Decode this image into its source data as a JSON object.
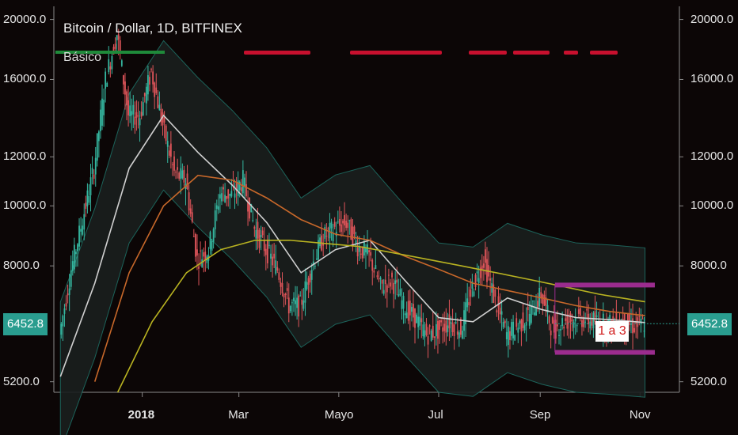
{
  "header": {
    "title": "Bitcoin / Dollar, 1D, BITFINEX",
    "indicator_label": "Básico"
  },
  "price_badge": "6452.8",
  "annotation": "1 a 3",
  "colors": {
    "background": "#0c0606",
    "candle_up": "#35b7a0",
    "candle_down": "#e0555a",
    "badge": "#2a9d8f",
    "ma_fast": "#d0d0d0",
    "ma_mid": "#c8682a",
    "ma_slow": "#b9b321",
    "bollinger": "#1e6e64",
    "box": "#9b2c8e",
    "signal_red": "#c8102e",
    "signal_green": "#1f8a3a"
  },
  "chart_data": {
    "type": "candlestick",
    "title": "Bitcoin / Dollar, 1D, BITFINEX",
    "y_scale": "log",
    "ylim": [
      5000,
      21000
    ],
    "y_ticks": [
      {
        "value": 20000,
        "label": "20000.0"
      },
      {
        "value": 16000,
        "label": "16000.0"
      },
      {
        "value": 12000,
        "label": "12000.0"
      },
      {
        "value": 10000,
        "label": "10000.0"
      },
      {
        "value": 8000,
        "label": "8000.0"
      },
      {
        "value": 5200,
        "label": "5200.0"
      }
    ],
    "x_ticks": [
      {
        "date": "2018-01-01",
        "label": "2018",
        "bold": true
      },
      {
        "date": "2018-03-01",
        "label": "Mar",
        "bold": false
      },
      {
        "date": "2018-05-01",
        "label": "Mayo",
        "bold": false
      },
      {
        "date": "2018-07-01",
        "label": "Jul",
        "bold": false
      },
      {
        "date": "2018-09-01",
        "label": "Sep",
        "bold": false
      },
      {
        "date": "2018-11-01",
        "label": "Nov",
        "bold": false
      }
    ],
    "xlim": [
      "2017-11-08",
      "2018-11-25"
    ],
    "last_price": 6452.8,
    "series": [
      {
        "type": "close",
        "points": [
          [
            "2017-11-12",
            6200
          ],
          [
            "2017-11-19",
            7900
          ],
          [
            "2017-11-26",
            9500
          ],
          [
            "2017-12-03",
            11500
          ],
          [
            "2017-12-10",
            16000
          ],
          [
            "2017-12-17",
            19000
          ],
          [
            "2017-12-24",
            14000
          ],
          [
            "2017-12-31",
            14000
          ],
          [
            "2018-01-07",
            16500
          ],
          [
            "2018-01-14",
            13500
          ],
          [
            "2018-01-21",
            11300
          ],
          [
            "2018-01-28",
            11000
          ],
          [
            "2018-02-04",
            8200
          ],
          [
            "2018-02-11",
            8500
          ],
          [
            "2018-02-18",
            10500
          ],
          [
            "2018-02-25",
            10400
          ],
          [
            "2018-03-04",
            11000
          ],
          [
            "2018-03-11",
            9200
          ],
          [
            "2018-03-18",
            8500
          ],
          [
            "2018-03-25",
            7900
          ],
          [
            "2018-04-01",
            6900
          ],
          [
            "2018-04-08",
            6900
          ],
          [
            "2018-04-15",
            8000
          ],
          [
            "2018-04-22",
            8900
          ],
          [
            "2018-04-29",
            9200
          ],
          [
            "2018-05-06",
            9400
          ],
          [
            "2018-05-13",
            8600
          ],
          [
            "2018-05-20",
            8300
          ],
          [
            "2018-05-27",
            7400
          ],
          [
            "2018-06-03",
            7600
          ],
          [
            "2018-06-10",
            6900
          ],
          [
            "2018-06-17",
            6600
          ],
          [
            "2018-06-24",
            6200
          ],
          [
            "2018-07-01",
            6300
          ],
          [
            "2018-07-08",
            6500
          ],
          [
            "2018-07-15",
            6300
          ],
          [
            "2018-07-22",
            7400
          ],
          [
            "2018-07-29",
            8200
          ],
          [
            "2018-08-05",
            7000
          ],
          [
            "2018-08-12",
            6200
          ],
          [
            "2018-08-19",
            6400
          ],
          [
            "2018-08-26",
            6700
          ],
          [
            "2018-09-02",
            7200
          ],
          [
            "2018-09-09",
            6300
          ],
          [
            "2018-09-16",
            6500
          ],
          [
            "2018-09-23",
            6600
          ],
          [
            "2018-09-30",
            6550
          ],
          [
            "2018-10-07",
            6500
          ],
          [
            "2018-10-14",
            6450
          ],
          [
            "2018-10-21",
            6500
          ],
          [
            "2018-10-28",
            6400
          ],
          [
            "2018-11-04",
            6452.8
          ]
        ]
      },
      {
        "type": "ma_fast",
        "points": [
          [
            "2017-11-12",
            5300
          ],
          [
            "2017-12-03",
            7500
          ],
          [
            "2017-12-24",
            11500
          ],
          [
            "2018-01-14",
            14000
          ],
          [
            "2018-02-04",
            12200
          ],
          [
            "2018-02-25",
            10800
          ],
          [
            "2018-03-18",
            9400
          ],
          [
            "2018-04-08",
            7800
          ],
          [
            "2018-04-29",
            8500
          ],
          [
            "2018-05-20",
            8800
          ],
          [
            "2018-06-10",
            7600
          ],
          [
            "2018-07-01",
            6600
          ],
          [
            "2018-07-22",
            6500
          ],
          [
            "2018-08-12",
            7100
          ],
          [
            "2018-09-02",
            6800
          ],
          [
            "2018-09-23",
            6600
          ],
          [
            "2018-10-14",
            6550
          ],
          [
            "2018-11-04",
            6480
          ]
        ]
      },
      {
        "type": "ma_mid",
        "points": [
          [
            "2017-12-03",
            5200
          ],
          [
            "2017-12-24",
            7800
          ],
          [
            "2018-01-14",
            10000
          ],
          [
            "2018-02-04",
            11200
          ],
          [
            "2018-02-25",
            11000
          ],
          [
            "2018-03-18",
            10300
          ],
          [
            "2018-04-08",
            9500
          ],
          [
            "2018-04-29",
            9000
          ],
          [
            "2018-05-20",
            8800
          ],
          [
            "2018-06-10",
            8300
          ],
          [
            "2018-07-01",
            7900
          ],
          [
            "2018-07-22",
            7500
          ],
          [
            "2018-08-12",
            7300
          ],
          [
            "2018-09-02",
            7100
          ],
          [
            "2018-09-23",
            6900
          ],
          [
            "2018-10-14",
            6750
          ],
          [
            "2018-11-04",
            6650
          ]
        ]
      },
      {
        "type": "ma_slow",
        "points": [
          [
            "2017-12-17",
            5000
          ],
          [
            "2018-01-07",
            6500
          ],
          [
            "2018-01-28",
            7800
          ],
          [
            "2018-02-18",
            8500
          ],
          [
            "2018-03-11",
            8800
          ],
          [
            "2018-04-01",
            8800
          ],
          [
            "2018-04-22",
            8700
          ],
          [
            "2018-05-13",
            8600
          ],
          [
            "2018-06-03",
            8400
          ],
          [
            "2018-06-24",
            8200
          ],
          [
            "2018-07-15",
            8000
          ],
          [
            "2018-08-05",
            7800
          ],
          [
            "2018-08-26",
            7600
          ],
          [
            "2018-09-16",
            7400
          ],
          [
            "2018-10-07",
            7200
          ],
          [
            "2018-11-04",
            7000
          ]
        ]
      }
    ],
    "range_box": {
      "start": "2018-09-10",
      "end": "2018-11-10",
      "upper": 7450,
      "lower": 5800
    }
  }
}
